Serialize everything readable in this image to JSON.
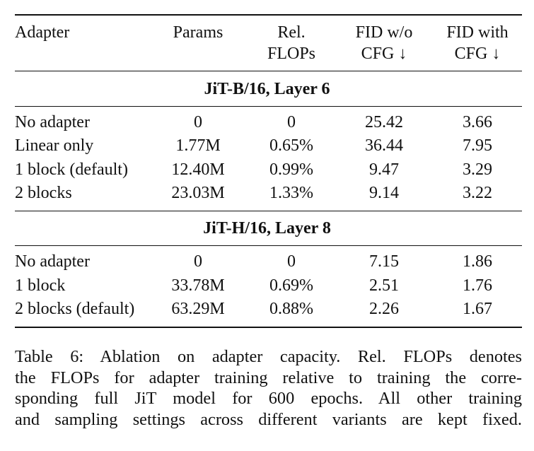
{
  "table": {
    "headers": [
      [
        "Adapter"
      ],
      [
        "Params"
      ],
      [
        "Rel.",
        "FLOPs"
      ],
      [
        "FID w/o",
        "CFG ↓"
      ],
      [
        "FID with",
        "CFG ↓"
      ]
    ],
    "groups": [
      {
        "title": "JiT-B/16, Layer 6",
        "rows": [
          [
            "No adapter",
            "0",
            "0",
            "25.42",
            "3.66"
          ],
          [
            "Linear only",
            "1.77M",
            "0.65%",
            "36.44",
            "7.95"
          ],
          [
            "1 block (default)",
            "12.40M",
            "0.99%",
            "9.47",
            "3.29"
          ],
          [
            "2 blocks",
            "23.03M",
            "1.33%",
            "9.14",
            "3.22"
          ]
        ]
      },
      {
        "title": "JiT-H/16, Layer 8",
        "rows": [
          [
            "No adapter",
            "0",
            "0",
            "7.15",
            "1.86"
          ],
          [
            "1 block",
            "33.78M",
            "0.69%",
            "2.51",
            "1.76"
          ],
          [
            "2 blocks (default)",
            "63.29M",
            "0.88%",
            "2.26",
            "1.67"
          ]
        ]
      }
    ]
  },
  "caption": {
    "lines": [
      "Table 6: Ablation on adapter capacity. Rel. FLOPs denotes",
      "the FLOPs for adapter training relative to training the corre-",
      "sponding full JiT model for 600 epochs. All other training",
      "and sampling settings across different variants are kept fixed."
    ]
  }
}
